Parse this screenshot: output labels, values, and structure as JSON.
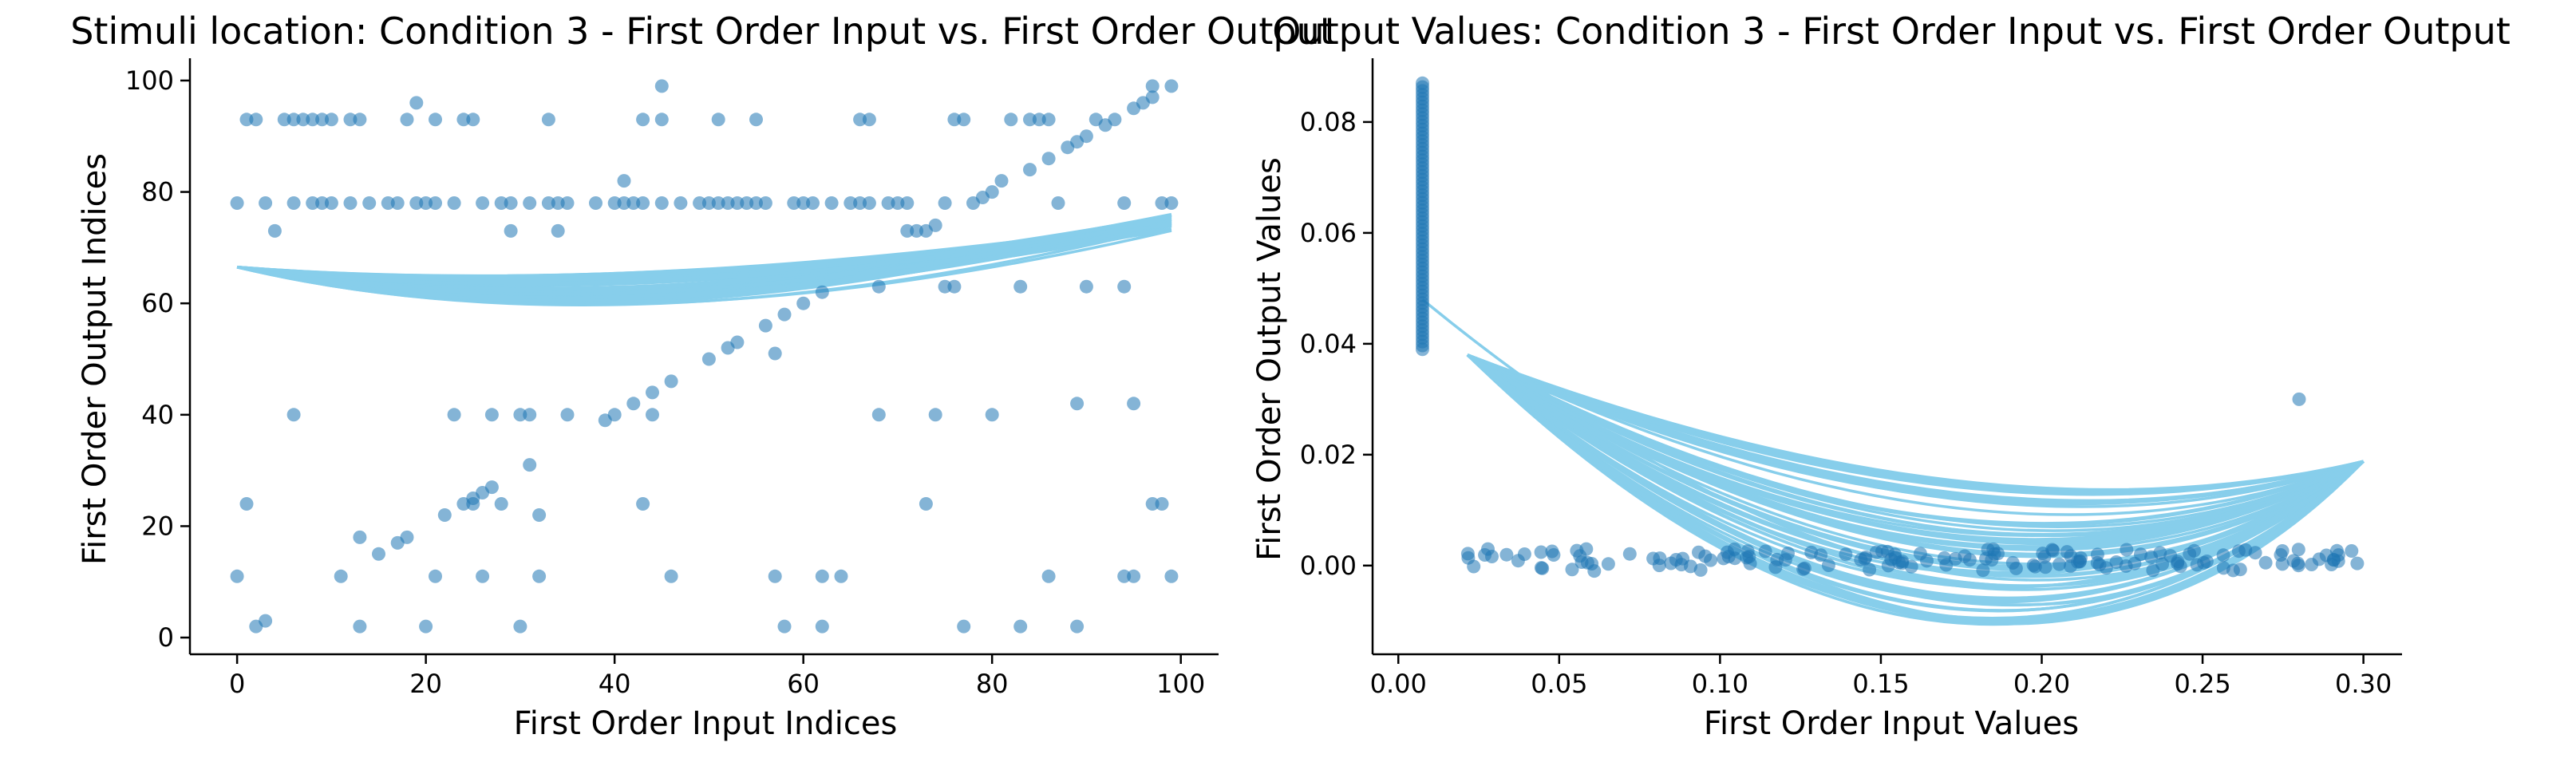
{
  "colors": {
    "point": "#1f77b4",
    "curve": "#87ceeb",
    "axis": "#000000"
  },
  "chart_data": [
    {
      "type": "scatter",
      "title": "Stimuli location: Condition 3 - First Order Input vs. First Order Output",
      "xlabel": "First Order Input Indices",
      "ylabel": "First Order Output Indices",
      "xlim": [
        -5,
        104
      ],
      "ylim": [
        -3,
        104
      ],
      "xticks": [
        0,
        20,
        40,
        60,
        80,
        100
      ],
      "yticks": [
        0,
        20,
        40,
        60,
        80,
        100
      ],
      "grid": false,
      "points": [
        [
          0,
          78
        ],
        [
          0,
          11
        ],
        [
          1,
          93
        ],
        [
          1,
          24
        ],
        [
          2,
          93
        ],
        [
          2,
          2
        ],
        [
          3,
          3
        ],
        [
          3,
          78
        ],
        [
          4,
          73
        ],
        [
          5,
          93
        ],
        [
          6,
          78
        ],
        [
          6,
          93
        ],
        [
          6,
          40
        ],
        [
          7,
          93
        ],
        [
          8,
          78
        ],
        [
          8,
          93
        ],
        [
          9,
          93
        ],
        [
          9,
          78
        ],
        [
          10,
          78
        ],
        [
          10,
          93
        ],
        [
          11,
          11
        ],
        [
          12,
          78
        ],
        [
          12,
          93
        ],
        [
          13,
          93
        ],
        [
          13,
          18
        ],
        [
          13,
          2
        ],
        [
          14,
          78
        ],
        [
          15,
          15
        ],
        [
          16,
          78
        ],
        [
          17,
          78
        ],
        [
          17,
          17
        ],
        [
          18,
          93
        ],
        [
          18,
          18
        ],
        [
          19,
          96
        ],
        [
          19,
          78
        ],
        [
          20,
          2
        ],
        [
          20,
          78
        ],
        [
          21,
          93
        ],
        [
          21,
          78
        ],
        [
          21,
          11
        ],
        [
          22,
          22
        ],
        [
          23,
          40
        ],
        [
          23,
          78
        ],
        [
          24,
          93
        ],
        [
          24,
          24
        ],
        [
          25,
          93
        ],
        [
          25,
          24
        ],
        [
          25,
          25
        ],
        [
          26,
          11
        ],
        [
          26,
          78
        ],
        [
          26,
          26
        ],
        [
          27,
          27
        ],
        [
          27,
          40
        ],
        [
          28,
          24
        ],
        [
          28,
          78
        ],
        [
          29,
          73
        ],
        [
          29,
          78
        ],
        [
          30,
          2
        ],
        [
          30,
          40
        ],
        [
          31,
          31
        ],
        [
          31,
          40
        ],
        [
          31,
          78
        ],
        [
          32,
          11
        ],
        [
          32,
          22
        ],
        [
          33,
          93
        ],
        [
          33,
          78
        ],
        [
          34,
          73
        ],
        [
          34,
          78
        ],
        [
          35,
          78
        ],
        [
          35,
          40
        ],
        [
          38,
          78
        ],
        [
          39,
          39
        ],
        [
          40,
          40
        ],
        [
          40,
          78
        ],
        [
          41,
          82
        ],
        [
          41,
          78
        ],
        [
          42,
          42
        ],
        [
          42,
          78
        ],
        [
          43,
          93
        ],
        [
          43,
          24
        ],
        [
          43,
          78
        ],
        [
          44,
          44
        ],
        [
          44,
          40
        ],
        [
          45,
          99
        ],
        [
          45,
          93
        ],
        [
          45,
          78
        ],
        [
          46,
          46
        ],
        [
          46,
          11
        ],
        [
          47,
          78
        ],
        [
          49,
          78
        ],
        [
          50,
          50
        ],
        [
          50,
          78
        ],
        [
          51,
          93
        ],
        [
          51,
          78
        ],
        [
          52,
          52
        ],
        [
          52,
          78
        ],
        [
          53,
          53
        ],
        [
          53,
          78
        ],
        [
          54,
          78
        ],
        [
          55,
          93
        ],
        [
          55,
          78
        ],
        [
          56,
          56
        ],
        [
          56,
          78
        ],
        [
          57,
          51
        ],
        [
          57,
          11
        ],
        [
          58,
          58
        ],
        [
          58,
          2
        ],
        [
          59,
          78
        ],
        [
          60,
          60
        ],
        [
          60,
          78
        ],
        [
          61,
          78
        ],
        [
          62,
          62
        ],
        [
          62,
          11
        ],
        [
          62,
          2
        ],
        [
          63,
          78
        ],
        [
          64,
          11
        ],
        [
          65,
          78
        ],
        [
          66,
          93
        ],
        [
          66,
          78
        ],
        [
          67,
          93
        ],
        [
          67,
          78
        ],
        [
          68,
          63
        ],
        [
          68,
          40
        ],
        [
          69,
          78
        ],
        [
          70,
          78
        ],
        [
          71,
          73
        ],
        [
          71,
          78
        ],
        [
          72,
          73
        ],
        [
          73,
          73
        ],
        [
          73,
          24
        ],
        [
          74,
          74
        ],
        [
          74,
          40
        ],
        [
          75,
          63
        ],
        [
          75,
          78
        ],
        [
          76,
          63
        ],
        [
          76,
          93
        ],
        [
          77,
          93
        ],
        [
          77,
          2
        ],
        [
          78,
          78
        ],
        [
          79,
          79
        ],
        [
          80,
          80
        ],
        [
          80,
          40
        ],
        [
          81,
          82
        ],
        [
          82,
          93
        ],
        [
          83,
          63
        ],
        [
          83,
          2
        ],
        [
          84,
          84
        ],
        [
          84,
          93
        ],
        [
          85,
          93
        ],
        [
          86,
          86
        ],
        [
          86,
          93
        ],
        [
          86,
          11
        ],
        [
          87,
          78
        ],
        [
          88,
          88
        ],
        [
          89,
          89
        ],
        [
          89,
          42
        ],
        [
          89,
          2
        ],
        [
          90,
          90
        ],
        [
          90,
          63
        ],
        [
          91,
          93
        ],
        [
          92,
          92
        ],
        [
          93,
          93
        ],
        [
          94,
          78
        ],
        [
          94,
          63
        ],
        [
          94,
          11
        ],
        [
          95,
          95
        ],
        [
          95,
          42
        ],
        [
          95,
          11
        ],
        [
          96,
          96
        ],
        [
          97,
          97
        ],
        [
          97,
          99
        ],
        [
          97,
          24
        ],
        [
          98,
          24
        ],
        [
          98,
          78
        ],
        [
          99,
          99
        ],
        [
          99,
          78
        ],
        [
          99,
          11
        ]
      ],
      "curve_count": 40,
      "curve_span": [
        0,
        99
      ],
      "curve_left_y": 66.5,
      "curve_right_y": [
        73,
        76
      ],
      "curve_min_y": [
        60,
        66
      ]
    },
    {
      "type": "scatter",
      "title": "Output Values: Condition 3 - First Order Input vs. First Order Output",
      "xlabel": "First Order Input Values",
      "ylabel": "First Order Output Values",
      "xlim": [
        -0.008,
        0.312
      ],
      "ylim": [
        -0.016,
        0.0915
      ],
      "xticks": [
        0.0,
        0.05,
        0.1,
        0.15,
        0.2,
        0.25,
        0.3
      ],
      "xtick_labels": [
        "0.00",
        "0.05",
        "0.10",
        "0.15",
        "0.20",
        "0.25",
        "0.30"
      ],
      "yticks": [
        0.0,
        0.02,
        0.04,
        0.06,
        0.08
      ],
      "ytick_labels": [
        "0.00",
        "0.02",
        "0.04",
        "0.06",
        "0.08"
      ],
      "grid": false,
      "vertical_cluster": {
        "x": 0.0075,
        "y_range": [
          0.039,
          0.087
        ],
        "n": 70
      },
      "horizontal_cluster": {
        "x_range": [
          0.021,
          0.3
        ],
        "y_range": [
          -0.001,
          0.003
        ],
        "n": 150
      },
      "outlier": [
        0.28,
        0.03
      ],
      "curve_count": 60,
      "curve_x_range": [
        0.0075,
        0.3
      ],
      "curve_start": [
        0.0075,
        0.048
      ],
      "curve_end": [
        0.3,
        0.0188
      ],
      "curve_min_y": [
        -0.01,
        0.016
      ]
    }
  ]
}
